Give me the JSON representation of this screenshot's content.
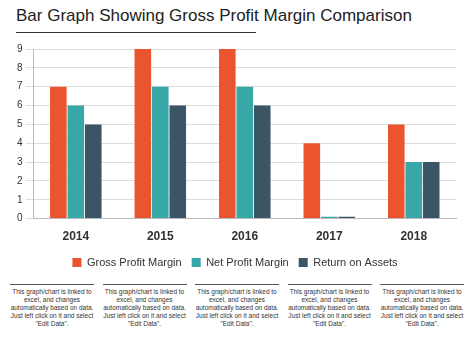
{
  "chart_data": {
    "type": "bar",
    "title": "Bar Graph Showing Gross Profit Margin Comparison",
    "categories": [
      "2014",
      "2015",
      "2016",
      "2017",
      "2018"
    ],
    "series": [
      {
        "name": "Gross Profit Margin",
        "color": "#ea5530",
        "values": [
          7,
          9,
          9,
          4,
          5
        ]
      },
      {
        "name": "Net Profit Margin",
        "color": "#38a7a7",
        "values": [
          6,
          7,
          7,
          0.1,
          3
        ]
      },
      {
        "name": "Return on Assets",
        "color": "#3c5566",
        "values": [
          5,
          6,
          6,
          0.1,
          3
        ]
      }
    ],
    "ylim": [
      0,
      9
    ],
    "yticks": [
      0,
      1,
      2,
      3,
      4,
      5,
      6,
      7,
      8,
      9
    ],
    "grid": true,
    "legend": "bottom",
    "annotations": [
      "This graph/chart is linked to excel, and changes automatically based on data. Just left click on it and select \"Edit Data\".",
      "This graph/chart is linked to excel, and changes automatically based on data. Just left click on it and select \"Edit Data\".",
      "This graph/chart is linked to excel, and changes automatically based on data. Just left click on it and select \"Edit Data\".",
      "This graph/chart is linked to excel, and changes automatically based on data. Just left click on it and select \"Edit Data\".",
      "This graph/chart is linked to excel, and changes automatically based on data. Just left click on it and select \"Edit Data\"."
    ]
  }
}
